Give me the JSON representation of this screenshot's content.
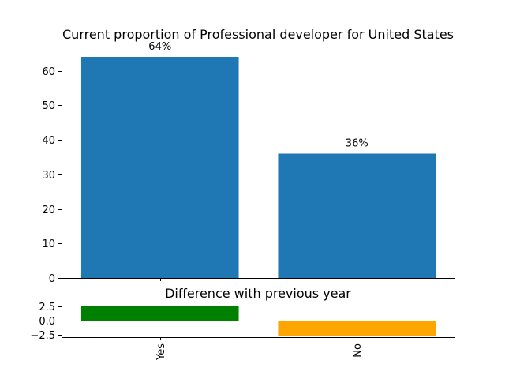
{
  "chart_data": [
    {
      "type": "bar",
      "title": "Current proportion of Professional developer for United States",
      "categories": [
        "Yes",
        "No"
      ],
      "values": [
        64,
        36
      ],
      "data_labels": [
        "64%",
        "36%"
      ],
      "xlabel": "",
      "ylabel": "",
      "ylim": [
        0,
        64
      ],
      "yticks": [
        0,
        10,
        20,
        30,
        40,
        50,
        60
      ],
      "ytick_labels": [
        "0",
        "10",
        "20",
        "30",
        "40",
        "50",
        "60"
      ],
      "grid": false,
      "bar_color": "#1f77b4"
    },
    {
      "type": "bar",
      "title": "Difference with previous year",
      "categories": [
        "Yes",
        "No"
      ],
      "values": [
        2.6,
        -2.6
      ],
      "xlabel": "",
      "ylabel": "",
      "ylim": [
        -2.6,
        2.6
      ],
      "yticks": [
        -2.5,
        0.0,
        2.5
      ],
      "ytick_labels": [
        "−2.5",
        "0.0",
        "2.5"
      ],
      "grid": false,
      "bar_colors": [
        "#008000",
        "#ffa500"
      ]
    }
  ]
}
